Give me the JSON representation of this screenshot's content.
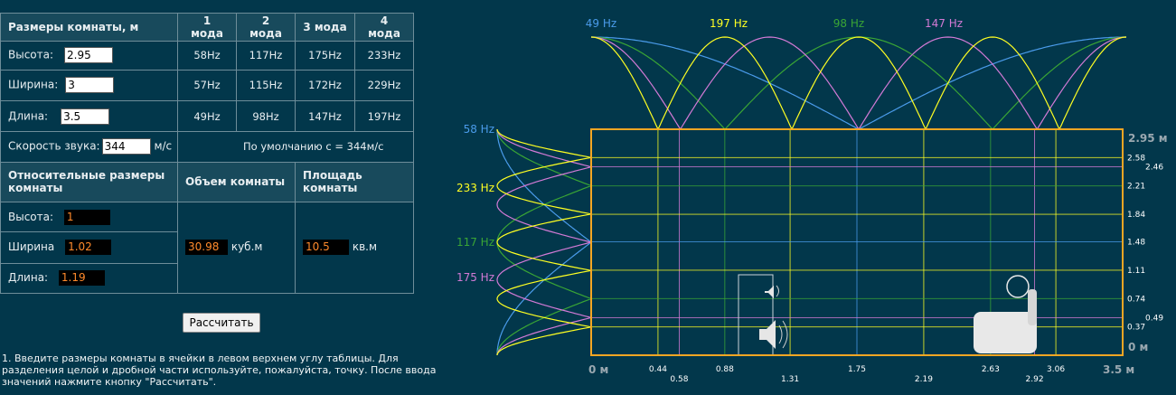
{
  "table": {
    "dims_header": "Размеры комнаты, м",
    "mode_headers": [
      "1 мода",
      "2 мода",
      "3 мода",
      "4 мода"
    ],
    "rows": [
      {
        "label": "Высота:",
        "value": "2.95",
        "modes": [
          "58Hz",
          "117Hz",
          "175Hz",
          "233Hz"
        ]
      },
      {
        "label": "Ширина:",
        "value": "3",
        "modes": [
          "57Hz",
          "115Hz",
          "172Hz",
          "229Hz"
        ]
      },
      {
        "label": "Длина:",
        "value": "3.5",
        "modes": [
          "49Hz",
          "98Hz",
          "147Hz",
          "197Hz"
        ]
      }
    ],
    "speed_label": "Скорость звука:",
    "speed_value": "344",
    "speed_unit": "м/с",
    "speed_default": "По  умолчанию с = 344м/с",
    "relative_header": "Относительные размеры комнаты",
    "volume_header": "Объем комнаты",
    "area_header": "Площадь комнаты",
    "relative": [
      {
        "label": "Высота:",
        "value": "1"
      },
      {
        "label": "Ширина",
        "value": "1.02"
      },
      {
        "label": "Длина:",
        "value": "1.19"
      }
    ],
    "volume_value": "30.98",
    "volume_unit": "куб.м",
    "area_value": "10.5",
    "area_unit": "кв.м"
  },
  "calculate_button": "Рассчитать",
  "instruction": "1. Введите размеры комнаты в ячейки в левом верхнем углу таблицы. Для разделения целой и дробной части используйте, пожалуйста, точку. После ввода значений нажмите кнопку \"Рассчитать\".",
  "diagram": {
    "colors": {
      "mode1": "#4a9bea",
      "mode2": "#3aa535",
      "mode3": "#d37ad6",
      "mode4": "#ffff22",
      "frame": "#f5a623"
    },
    "top_labels": [
      {
        "text": "49 Hz",
        "mode": 1
      },
      {
        "text": "197 Hz",
        "mode": 4
      },
      {
        "text": "98 Hz",
        "mode": 2
      },
      {
        "text": "147 Hz",
        "mode": 3
      }
    ],
    "side_labels": [
      {
        "text": "58 Hz",
        "mode": 1
      },
      {
        "text": "233 Hz",
        "mode": 4
      },
      {
        "text": "117 Hz",
        "mode": 2
      },
      {
        "text": "175 Hz",
        "mode": 3
      }
    ],
    "length": 3.5,
    "height": 2.95,
    "length_label": "3.5 м",
    "height_label": "2.95 м",
    "zero_x": "0 м",
    "zero_y": "0 м",
    "x_ticks": [
      {
        "v": 0.44,
        "label": "0.44",
        "mode": 4,
        "row": 0
      },
      {
        "v": 0.58,
        "label": "0.58",
        "mode": 3,
        "row": 1
      },
      {
        "v": 0.88,
        "label": "0.88",
        "mode": 2,
        "row": 0
      },
      {
        "v": 1.31,
        "label": "1.31",
        "mode": 4,
        "row": 1
      },
      {
        "v": 1.75,
        "label": "1.75",
        "mode": 1,
        "row": 0
      },
      {
        "v": 2.19,
        "label": "2.19",
        "mode": 4,
        "row": 1
      },
      {
        "v": 2.63,
        "label": "2.63",
        "mode": 2,
        "row": 0
      },
      {
        "v": 2.92,
        "label": "2.92",
        "mode": 3,
        "row": 1
      },
      {
        "v": 3.06,
        "label": "3.06",
        "mode": 4,
        "row": 0
      }
    ],
    "y_ticks": [
      {
        "v": 0.37,
        "label": "0.37",
        "mode": 4
      },
      {
        "v": 0.49,
        "label": "0.49",
        "mode": 3
      },
      {
        "v": 0.74,
        "label": "0.74",
        "mode": 2
      },
      {
        "v": 1.11,
        "label": "1.11",
        "mode": 4
      },
      {
        "v": 1.48,
        "label": "1.48",
        "mode": 1
      },
      {
        "v": 1.84,
        "label": "1.84",
        "mode": 4
      },
      {
        "v": 2.21,
        "label": "2.21",
        "mode": 2
      },
      {
        "v": 2.46,
        "label": "2.46",
        "mode": 3
      },
      {
        "v": 2.58,
        "label": "2.58",
        "mode": 4
      }
    ]
  }
}
